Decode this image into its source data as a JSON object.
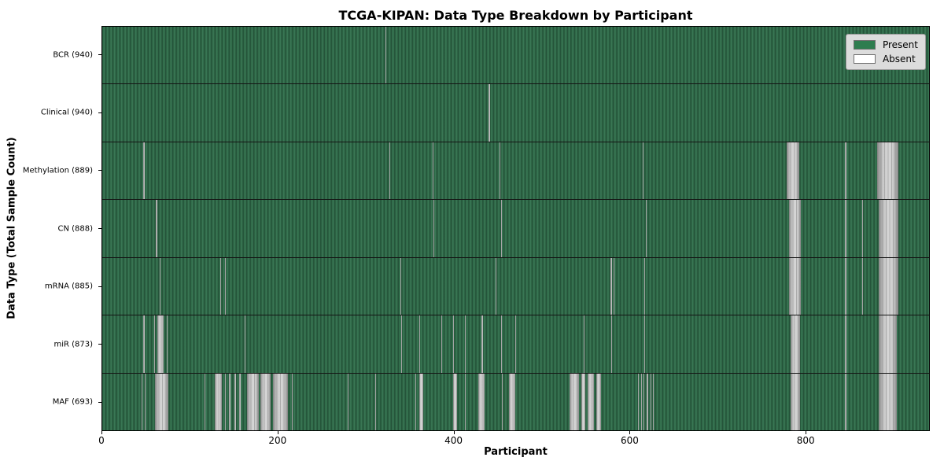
{
  "colors": {
    "present_green": "#2e6746",
    "present_green_dark": "#224f36",
    "present_green_light": "#3c7a58",
    "absent_gray": "#d6d6d6",
    "absent_gray_edge": "#8a8a8a",
    "legend_background": "#dcdcdc",
    "legend_swatch_present": "#2e7d4f",
    "legend_swatch_absent": "#ffffff"
  },
  "legend": {
    "present_label": "Present",
    "absent_label": "Absent"
  },
  "chart_data": {
    "type": "heatmap",
    "title": "TCGA-KIPAN: Data Type Breakdown by Participant",
    "xlabel": "Participant",
    "ylabel": "Data Type (Total Sample Count)",
    "legend_labels": [
      "Present",
      "Absent"
    ],
    "legend_position": "upper right",
    "x_ticks": [
      0,
      200,
      400,
      600,
      800
    ],
    "x_range": [
      0,
      941
    ],
    "n_participants": 941,
    "grid": false,
    "rows": [
      {
        "label": "BCR (940)",
        "data_type": "BCR",
        "total_samples": 940,
        "absent_ranges": [
          [
            322,
            323
          ]
        ]
      },
      {
        "label": "Clinical (940)",
        "data_type": "Clinical",
        "total_samples": 940,
        "absent_ranges": [
          [
            440,
            441
          ]
        ]
      },
      {
        "label": "Methylation (889)",
        "data_type": "Methylation",
        "total_samples": 889,
        "absent_ranges": [
          [
            47,
            48
          ],
          [
            327,
            328
          ],
          [
            376,
            377
          ],
          [
            452,
            453
          ],
          [
            615,
            616
          ],
          [
            779,
            793
          ],
          [
            845,
            847
          ],
          [
            882,
            906
          ]
        ]
      },
      {
        "label": "CN (888)",
        "data_type": "CN",
        "total_samples": 888,
        "absent_ranges": [
          [
            61,
            63
          ],
          [
            377,
            378
          ],
          [
            454,
            455
          ],
          [
            619,
            620
          ],
          [
            782,
            795
          ],
          [
            845,
            847
          ],
          [
            865,
            866
          ],
          [
            884,
            906
          ]
        ]
      },
      {
        "label": "mRNA (885)",
        "data_type": "mRNA",
        "total_samples": 885,
        "absent_ranges": [
          [
            65,
            66
          ],
          [
            134,
            135
          ],
          [
            140,
            141
          ],
          [
            339,
            340
          ],
          [
            448,
            449
          ],
          [
            578,
            580
          ],
          [
            582,
            583
          ],
          [
            617,
            618
          ],
          [
            782,
            795
          ],
          [
            845,
            847
          ],
          [
            865,
            866
          ],
          [
            884,
            906
          ]
        ]
      },
      {
        "label": "miR (873)",
        "data_type": "miR",
        "total_samples": 873,
        "absent_ranges": [
          [
            47,
            48
          ],
          [
            59,
            60
          ],
          [
            63,
            70
          ],
          [
            73,
            74
          ],
          [
            162,
            163
          ],
          [
            340,
            341
          ],
          [
            361,
            362
          ],
          [
            386,
            387
          ],
          [
            399,
            400
          ],
          [
            413,
            414
          ],
          [
            432,
            433
          ],
          [
            454,
            455
          ],
          [
            470,
            471
          ],
          [
            548,
            549
          ],
          [
            579,
            580
          ],
          [
            617,
            618
          ],
          [
            783,
            794
          ],
          [
            845,
            847
          ],
          [
            884,
            904
          ]
        ]
      },
      {
        "label": "MAF (693)",
        "data_type": "MAF",
        "total_samples": 693,
        "absent_ranges": [
          [
            45,
            46
          ],
          [
            48,
            49
          ],
          [
            60,
            75
          ],
          [
            116,
            117
          ],
          [
            128,
            136
          ],
          [
            140,
            141
          ],
          [
            144,
            146
          ],
          [
            150,
            152
          ],
          [
            156,
            158
          ],
          [
            165,
            178
          ],
          [
            180,
            192
          ],
          [
            194,
            211
          ],
          [
            216,
            217
          ],
          [
            279,
            280
          ],
          [
            311,
            312
          ],
          [
            356,
            357
          ],
          [
            361,
            365
          ],
          [
            399,
            404
          ],
          [
            413,
            414
          ],
          [
            428,
            435
          ],
          [
            455,
            456
          ],
          [
            463,
            470
          ],
          [
            532,
            543
          ],
          [
            545,
            550
          ],
          [
            552,
            560
          ],
          [
            562,
            568
          ],
          [
            610,
            611
          ],
          [
            613,
            614
          ],
          [
            616,
            617
          ],
          [
            620,
            621
          ],
          [
            624,
            625
          ],
          [
            627,
            628
          ],
          [
            783,
            794
          ],
          [
            845,
            847
          ],
          [
            884,
            904
          ]
        ]
      }
    ]
  }
}
